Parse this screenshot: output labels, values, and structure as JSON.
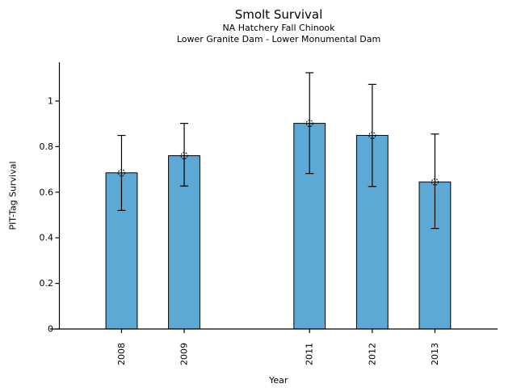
{
  "chart_data": {
    "type": "bar",
    "title": "Smolt Survival",
    "subtitle_lines": [
      "NA Hatchery Fall Chinook",
      "Lower Granite Dam - Lower Monumental Dam"
    ],
    "xlabel": "Year",
    "ylabel": "PIT-Tag Survival",
    "categories": [
      "2008",
      "2009",
      "2011",
      "2012",
      "2013"
    ],
    "x_years": [
      2008,
      2009,
      2011,
      2012,
      2013
    ],
    "values": [
      0.685,
      0.76,
      0.902,
      0.849,
      0.645
    ],
    "error_low": [
      0.52,
      0.627,
      0.682,
      0.625,
      0.441
    ],
    "error_high": [
      0.849,
      0.902,
      1.124,
      1.073,
      0.855
    ],
    "yticks": [
      0,
      0.2,
      0.4,
      0.6,
      0.8,
      1
    ],
    "ytick_labels": [
      "0",
      "0.2",
      "0.4",
      "0.6",
      "0.8",
      "1"
    ],
    "ylim": [
      0,
      1.17
    ],
    "xlim": [
      2006.86,
      2014.0
    ],
    "bar_width_years": 0.5,
    "grid": false,
    "legend": "none",
    "marker": "open-circle",
    "colors": {
      "bar_fill": "#5BA9D4",
      "bar_edge": "#000000",
      "error_bar": "#000000",
      "axis": "#000000",
      "text": "#000000",
      "background": "#FFFFFF"
    }
  }
}
